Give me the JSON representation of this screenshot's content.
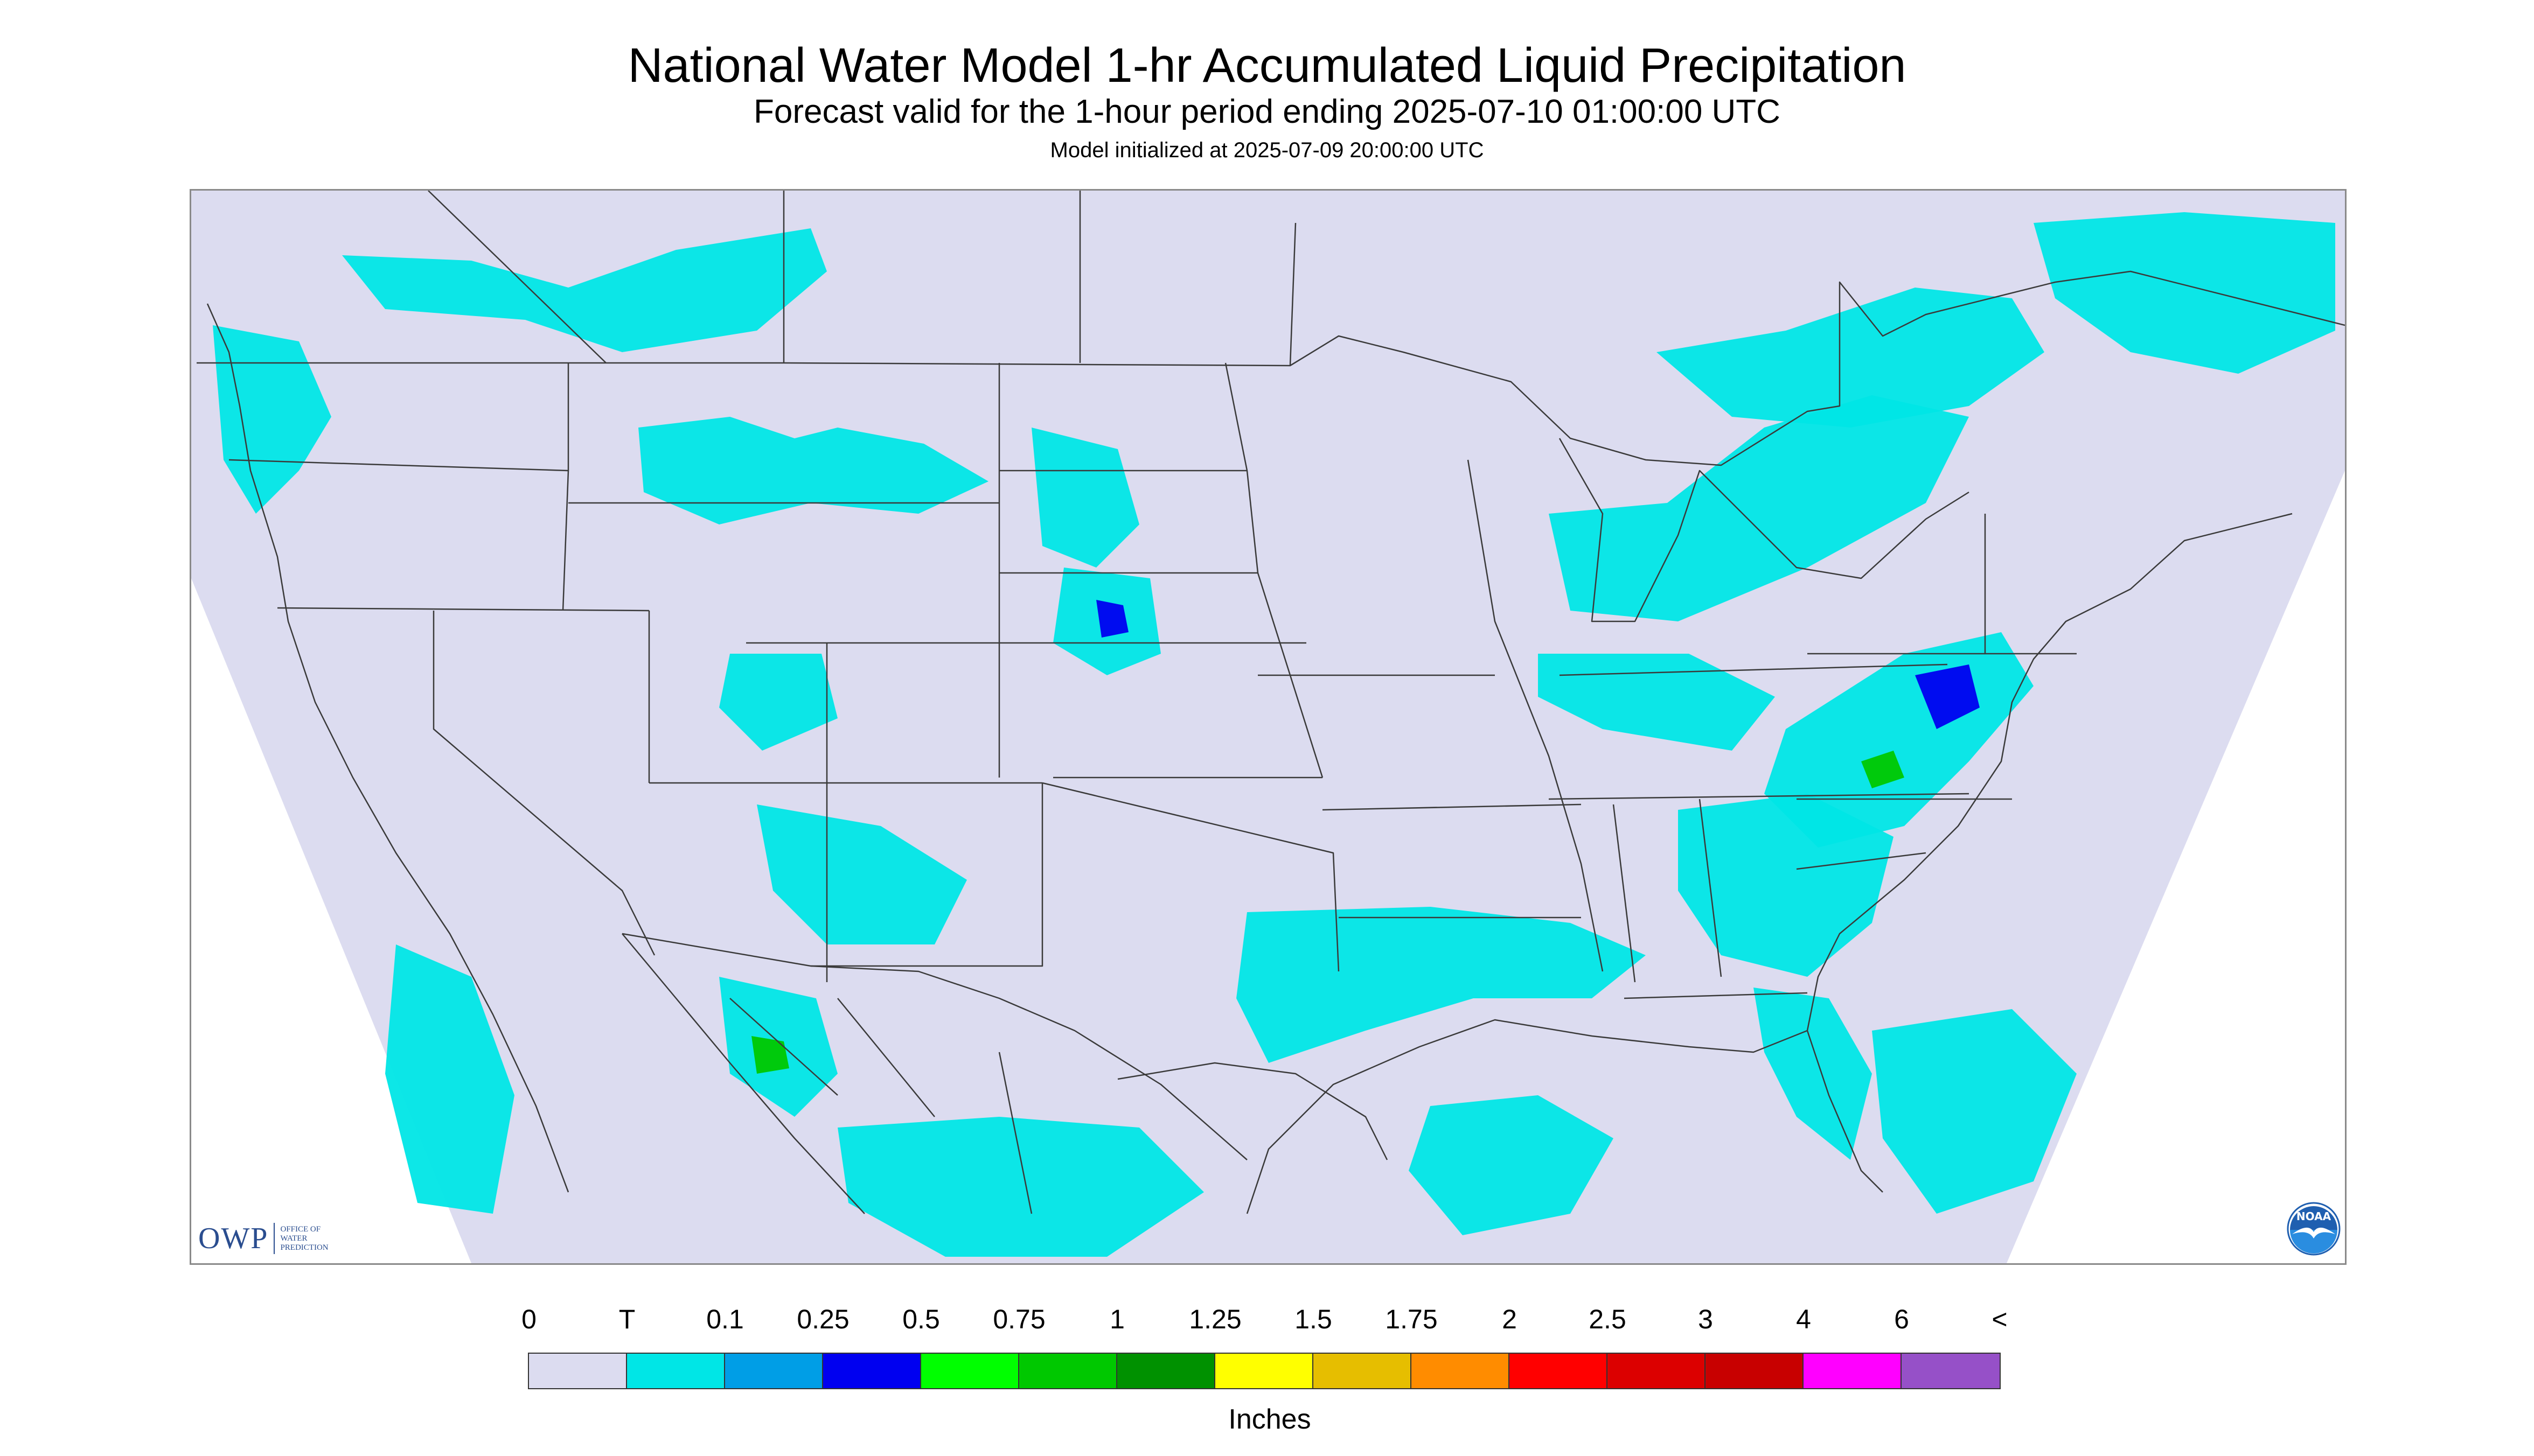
{
  "title": "National Water Model 1-hr Accumulated Liquid Precipitation",
  "subtitle": "Forecast valid for the 1-hour period ending 2025-07-10 01:00:00 UTC",
  "init_line": "Model initialized at 2025-07-09 20:00:00 UTC",
  "logo_owp": {
    "mark": "OWP",
    "sub": "OFFICE OF\nWATER\nPREDICTION"
  },
  "logo_noaa": {
    "text": "NOAA",
    "colors": {
      "upper": "#1f5fb0",
      "lower": "#2a8de0",
      "bird": "#ffffff"
    }
  },
  "map": {
    "colors": {
      "domain": "#dcdcf0",
      "outside": "#ffffff",
      "boundary": "#3a3a3a",
      "frame": "#8a8a8a"
    },
    "precip_areas": [
      {
        "region": "central-canada-plains",
        "bin": "T"
      },
      {
        "region": "pacific-northwest",
        "bin": "T"
      },
      {
        "region": "northern-rockies",
        "bin": "T"
      },
      {
        "region": "north-dakota",
        "bin": "T"
      },
      {
        "region": "south-dakota-nebraska",
        "bin": "T"
      },
      {
        "region": "nebraska-core",
        "bin": "0.25"
      },
      {
        "region": "colorado-wyoming",
        "bin": "T"
      },
      {
        "region": "arizona-new-mexico",
        "bin": "T"
      },
      {
        "region": "great-lakes",
        "bin": "T"
      },
      {
        "region": "ohio-valley",
        "bin": "T"
      },
      {
        "region": "appalachians-mid-atlantic",
        "bin": "T"
      },
      {
        "region": "mid-atlantic-core",
        "bin": "0.25"
      },
      {
        "region": "virginia-core",
        "bin": "0.75"
      },
      {
        "region": "southeast-carolinas",
        "bin": "T"
      },
      {
        "region": "gulf-coast",
        "bin": "T"
      },
      {
        "region": "florida",
        "bin": "T"
      },
      {
        "region": "quebec-ontario",
        "bin": "T"
      },
      {
        "region": "northeast-canada",
        "bin": "T"
      },
      {
        "region": "sierra-madre-occidental",
        "bin": "T"
      },
      {
        "region": "sonora-core",
        "bin": "0.75"
      },
      {
        "region": "southern-mexico",
        "bin": "T"
      },
      {
        "region": "gulf-of-mexico-south",
        "bin": "T"
      },
      {
        "region": "caribbean-bahamas",
        "bin": "T"
      },
      {
        "region": "baja-pacific",
        "bin": "T"
      }
    ]
  },
  "legend": {
    "units": "Inches",
    "labels": [
      "0",
      "T",
      "0.1",
      "0.25",
      "0.5",
      "0.75",
      "1",
      "1.25",
      "1.5",
      "1.75",
      "2",
      "2.5",
      "3",
      "4",
      "6",
      "<"
    ],
    "bins": [
      {
        "from": "0",
        "color": "#dcdcf0"
      },
      {
        "from": "T",
        "color": "#00e6e6"
      },
      {
        "from": "0.1",
        "color": "#009ee6"
      },
      {
        "from": "0.25",
        "color": "#0000f0"
      },
      {
        "from": "0.5",
        "color": "#00ff00"
      },
      {
        "from": "0.75",
        "color": "#00c800"
      },
      {
        "from": "1",
        "color": "#009100"
      },
      {
        "from": "1.25",
        "color": "#ffff00"
      },
      {
        "from": "1.5",
        "color": "#e6be00"
      },
      {
        "from": "1.75",
        "color": "#ff8c00"
      },
      {
        "from": "2",
        "color": "#ff0000"
      },
      {
        "from": "2.5",
        "color": "#dc0000"
      },
      {
        "from": "3",
        "color": "#c80000"
      },
      {
        "from": "4",
        "color": "#ff00ff"
      },
      {
        "from": "6",
        "color": "#9650c8"
      }
    ]
  }
}
